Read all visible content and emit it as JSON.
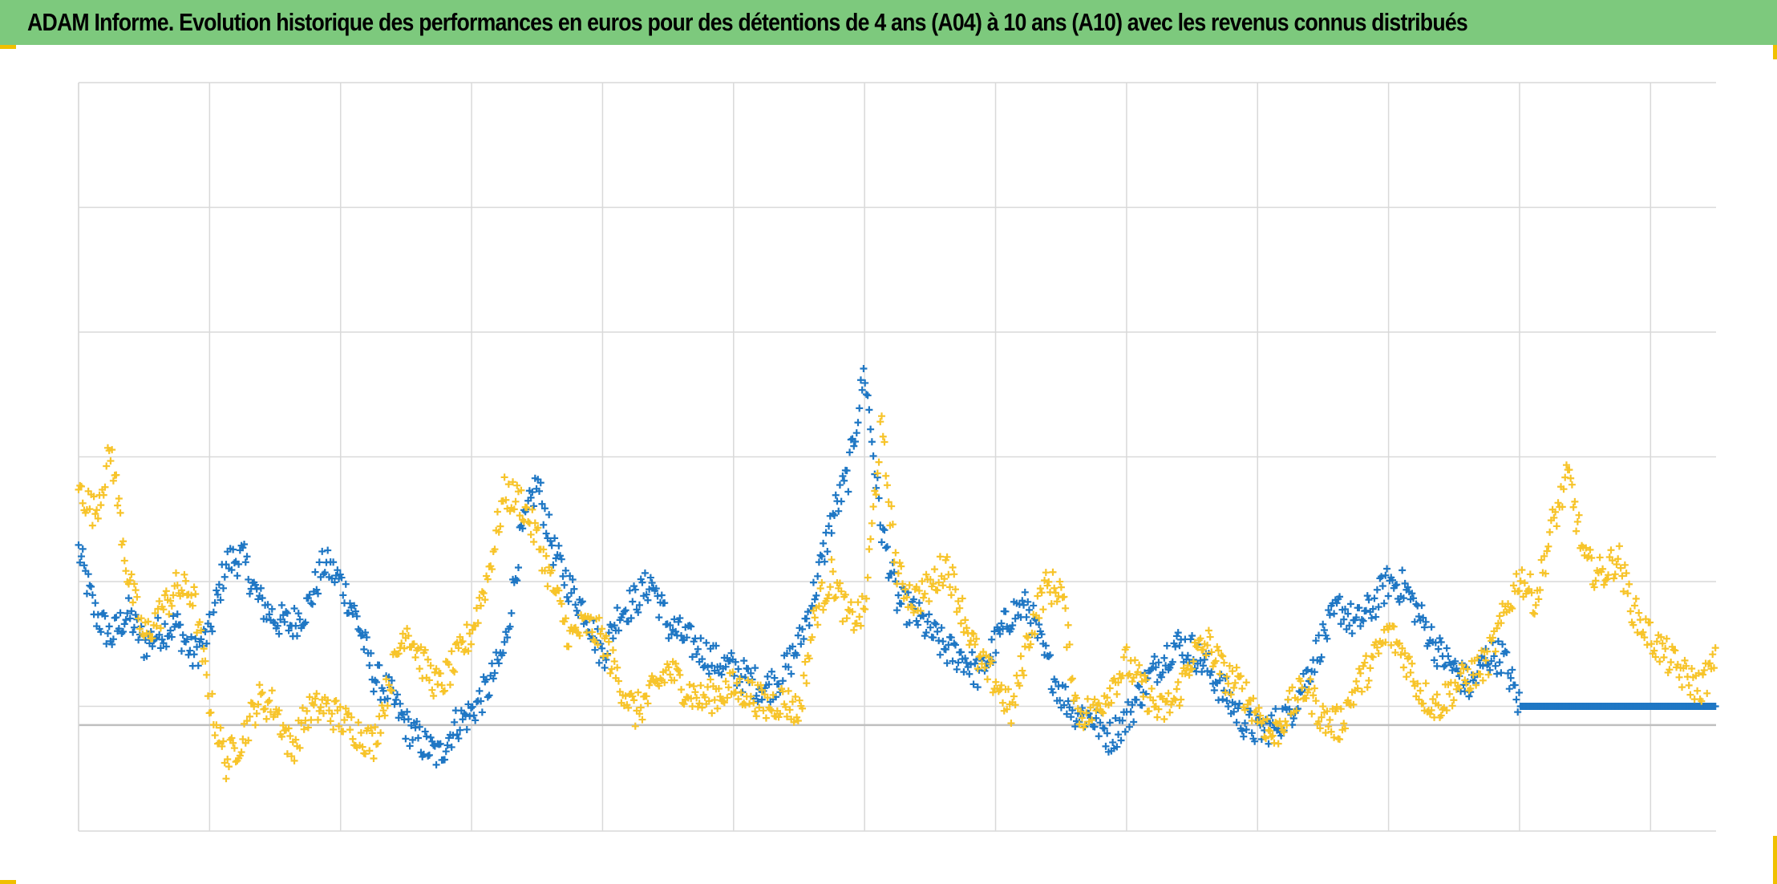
{
  "title": "ADAM Informe. Evolution historique des performances en euros pour des détentions de 4 ans (A04) à 10 ans (A10) avec les revenus connus distribués",
  "colors": {
    "header_bg": "#7dc97d",
    "accent": "#f0c000",
    "grid": "#d9d9d9",
    "zero_line": "#bfbfbf",
    "series_a04": "#1f77c4",
    "series_a10": "#f7c42a"
  },
  "chart_data": {
    "type": "scatter",
    "title": "ADAM Informe. Evolution historique des performances en euros pour des détentions de 4 ans (A04) à 10 ans (A10) avec les revenus connus distribués",
    "xlabel": "",
    "ylabel": "",
    "tick_labels_visible": false,
    "grid": true,
    "x_gridlines": 13,
    "y_gridlines": 7,
    "xlim": [
      0,
      100
    ],
    "ylim": [
      -0.85,
      5.15
    ],
    "marker": "plus",
    "series": [
      {
        "color": "#1f77c4",
        "points": [
          [
            0,
            1.4
          ],
          [
            1,
            0.9
          ],
          [
            2,
            0.7
          ],
          [
            3,
            0.9
          ],
          [
            4,
            0.65
          ],
          [
            5,
            0.75
          ],
          [
            6,
            0.8
          ],
          [
            7,
            0.55
          ],
          [
            8,
            0.75
          ],
          [
            9,
            1.3
          ],
          [
            10,
            1.35
          ],
          [
            11,
            1.0
          ],
          [
            12,
            0.85
          ],
          [
            13,
            0.8
          ],
          [
            14,
            0.95
          ],
          [
            15,
            1.3
          ],
          [
            16,
            1.15
          ],
          [
            17,
            0.85
          ],
          [
            18,
            0.4
          ],
          [
            19,
            0.25
          ],
          [
            20,
            0.0
          ],
          [
            21,
            -0.15
          ],
          [
            22,
            -0.25
          ],
          [
            23,
            0.0
          ],
          [
            24,
            0.1
          ],
          [
            25,
            0.3
          ],
          [
            26,
            0.6
          ],
          [
            27,
            1.5
          ],
          [
            28,
            1.95
          ],
          [
            29,
            1.4
          ],
          [
            30,
            1.1
          ],
          [
            31,
            0.9
          ],
          [
            32,
            0.55
          ],
          [
            33,
            0.9
          ],
          [
            34,
            1.0
          ],
          [
            35,
            1.15
          ],
          [
            36,
            0.8
          ],
          [
            37,
            0.7
          ],
          [
            38,
            0.6
          ],
          [
            39,
            0.5
          ],
          [
            40,
            0.45
          ],
          [
            41,
            0.35
          ],
          [
            42,
            0.3
          ],
          [
            43,
            0.4
          ],
          [
            44,
            0.65
          ],
          [
            45,
            1.1
          ],
          [
            46,
            1.65
          ],
          [
            47,
            2.0
          ],
          [
            48,
            2.85
          ],
          [
            49,
            1.6
          ],
          [
            50,
            1.0
          ],
          [
            51,
            0.9
          ],
          [
            52,
            0.75
          ],
          [
            53,
            0.6
          ],
          [
            54,
            0.55
          ],
          [
            55,
            0.4
          ],
          [
            56,
            0.65
          ],
          [
            57,
            0.9
          ],
          [
            58,
            0.95
          ],
          [
            59,
            0.55
          ],
          [
            60,
            0.25
          ],
          [
            61,
            0.1
          ],
          [
            62,
            0.05
          ],
          [
            63,
            -0.1
          ],
          [
            64,
            0.05
          ],
          [
            65,
            0.3
          ],
          [
            66,
            0.5
          ],
          [
            67,
            0.65
          ],
          [
            68,
            0.6
          ],
          [
            69,
            0.45
          ],
          [
            70,
            0.25
          ],
          [
            71,
            0.05
          ],
          [
            72,
            -0.05
          ],
          [
            73,
            0.0
          ],
          [
            74,
            0.1
          ],
          [
            75,
            0.4
          ],
          [
            76,
            0.7
          ],
          [
            77,
            0.95
          ],
          [
            78,
            0.8
          ],
          [
            79,
            0.95
          ],
          [
            80,
            1.15
          ],
          [
            81,
            1.1
          ],
          [
            82,
            0.85
          ],
          [
            83,
            0.6
          ],
          [
            84,
            0.45
          ],
          [
            85,
            0.3
          ],
          [
            86,
            0.55
          ],
          [
            87,
            0.55
          ],
          [
            88,
            0.15
          ],
          [
            89,
            0.15
          ],
          [
            90,
            0.15
          ],
          [
            91,
            0.15
          ],
          [
            92,
            0.15
          ],
          [
            93,
            0.15
          ],
          [
            94,
            0.15
          ],
          [
            95,
            0.15
          ],
          [
            96,
            0.15
          ],
          [
            97,
            0.15
          ],
          [
            98,
            0.15
          ],
          [
            99,
            0.15
          ],
          [
            100,
            0.15
          ]
        ]
      },
      {
        "color": "#f7c42a",
        "points": [
          [
            0,
            1.9
          ],
          [
            1,
            1.7
          ],
          [
            2,
            2.2
          ],
          [
            3,
            1.2
          ],
          [
            4,
            0.7
          ],
          [
            5,
            0.9
          ],
          [
            6,
            1.1
          ],
          [
            7,
            1.05
          ],
          [
            8,
            0.2
          ],
          [
            9,
            -0.3
          ],
          [
            10,
            -0.1
          ],
          [
            11,
            0.2
          ],
          [
            12,
            0.15
          ],
          [
            13,
            -0.2
          ],
          [
            14,
            0.1
          ],
          [
            15,
            0.15
          ],
          [
            16,
            0.05
          ],
          [
            17,
            -0.05
          ],
          [
            18,
            -0.15
          ],
          [
            19,
            0.35
          ],
          [
            20,
            0.8
          ],
          [
            21,
            0.5
          ],
          [
            22,
            0.3
          ],
          [
            23,
            0.5
          ],
          [
            24,
            0.75
          ],
          [
            25,
            1.2
          ],
          [
            26,
            1.85
          ],
          [
            27,
            1.8
          ],
          [
            28,
            1.5
          ],
          [
            29,
            1.1
          ],
          [
            30,
            0.7
          ],
          [
            31,
            0.8
          ],
          [
            32,
            0.7
          ],
          [
            33,
            0.35
          ],
          [
            34,
            0.1
          ],
          [
            35,
            0.25
          ],
          [
            36,
            0.45
          ],
          [
            37,
            0.3
          ],
          [
            38,
            0.2
          ],
          [
            39,
            0.25
          ],
          [
            40,
            0.3
          ],
          [
            41,
            0.25
          ],
          [
            42,
            0.15
          ],
          [
            43,
            0.2
          ],
          [
            44,
            0.1
          ],
          [
            45,
            0.9
          ],
          [
            46,
            1.2
          ],
          [
            47,
            0.85
          ],
          [
            48,
            0.9
          ],
          [
            49,
            2.4
          ],
          [
            50,
            1.2
          ],
          [
            51,
            1.0
          ],
          [
            52,
            1.1
          ],
          [
            53,
            1.3
          ],
          [
            54,
            0.9
          ],
          [
            55,
            0.5
          ],
          [
            56,
            0.35
          ],
          [
            57,
            0.1
          ],
          [
            58,
            0.7
          ],
          [
            59,
            1.1
          ],
          [
            60,
            1.1
          ],
          [
            61,
            0.1
          ],
          [
            62,
            0.1
          ],
          [
            63,
            0.3
          ],
          [
            64,
            0.5
          ],
          [
            65,
            0.3
          ],
          [
            66,
            0.1
          ],
          [
            67,
            0.2
          ],
          [
            68,
            0.55
          ],
          [
            69,
            0.65
          ],
          [
            70,
            0.4
          ],
          [
            71,
            0.3
          ],
          [
            72,
            0.1
          ],
          [
            73,
            -0.1
          ],
          [
            74,
            0.15
          ],
          [
            75,
            0.3
          ],
          [
            76,
            0.05
          ],
          [
            77,
            0.0
          ],
          [
            78,
            0.3
          ],
          [
            79,
            0.5
          ],
          [
            80,
            0.75
          ],
          [
            81,
            0.55
          ],
          [
            82,
            0.25
          ],
          [
            83,
            0.15
          ],
          [
            84,
            0.3
          ],
          [
            85,
            0.4
          ],
          [
            86,
            0.5
          ],
          [
            87,
            0.85
          ],
          [
            88,
            1.2
          ],
          [
            89,
            1.0
          ],
          [
            90,
            1.6
          ],
          [
            91,
            2.0
          ],
          [
            92,
            1.3
          ],
          [
            93,
            1.2
          ],
          [
            94,
            1.35
          ],
          [
            95,
            0.9
          ],
          [
            96,
            0.7
          ],
          [
            97,
            0.55
          ],
          [
            98,
            0.4
          ],
          [
            99,
            0.3
          ],
          [
            100,
            0.5
          ]
        ]
      }
    ]
  }
}
